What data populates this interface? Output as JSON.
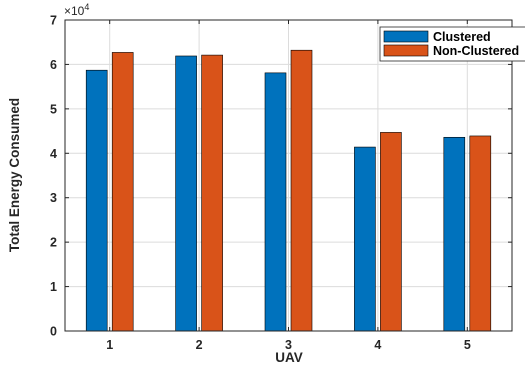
{
  "chart_data": {
    "type": "bar",
    "title": "",
    "xlabel": "UAV",
    "ylabel": "Total Energy Consumed",
    "categories": [
      "1",
      "2",
      "3",
      "4",
      "5"
    ],
    "series": [
      {
        "name": "Clustered",
        "color": "#0072BD",
        "values": [
          58700,
          61900,
          58100,
          41400,
          43600
        ]
      },
      {
        "name": "Non-Clustered",
        "color": "#D95319",
        "values": [
          62700,
          62100,
          63200,
          44700,
          43900
        ]
      }
    ],
    "ylim": [
      0,
      70000
    ],
    "y_ticks": [
      0,
      1,
      2,
      3,
      4,
      5,
      6,
      7
    ],
    "y_exponent_label": "×10",
    "y_exponent_power": "4",
    "grid": true,
    "legend_position": "top-right"
  }
}
